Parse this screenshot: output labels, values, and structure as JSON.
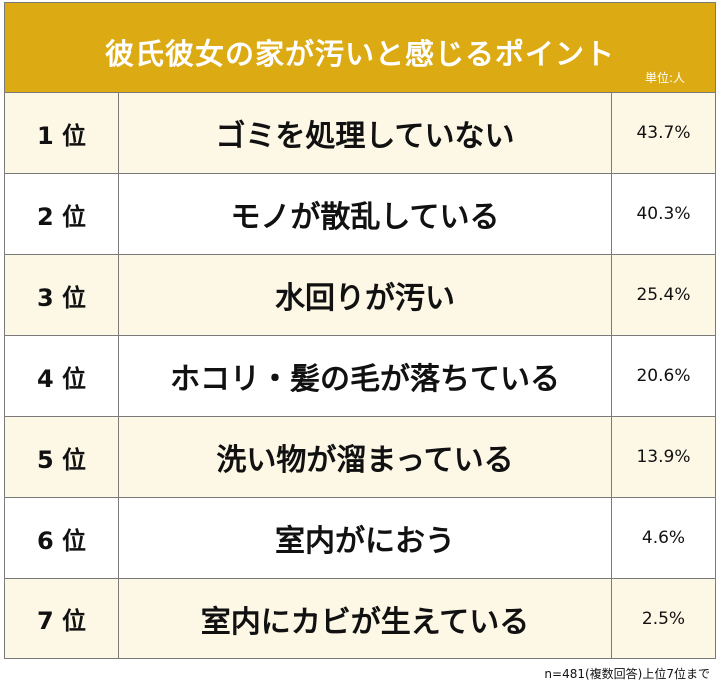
{
  "chart_data": {
    "type": "table",
    "title": "彼氏彼女の家が汚いと感じるポイント",
    "unit_label": "単位:人",
    "rows": [
      {
        "rank": "1 位",
        "item": "ゴミを処理していない",
        "value": "43.7%"
      },
      {
        "rank": "2 位",
        "item": "モノが散乱している",
        "value": "40.3%"
      },
      {
        "rank": "3 位",
        "item": "水回りが汚い",
        "value": "25.4%"
      },
      {
        "rank": "4 位",
        "item": "ホコリ・髪の毛が落ちている",
        "value": "20.6%"
      },
      {
        "rank": "5 位",
        "item": "洗い物が溜まっている",
        "value": "13.9%"
      },
      {
        "rank": "6 位",
        "item": "室内がにおう",
        "value": "4.6%"
      },
      {
        "rank": "7 位",
        "item": "室内にカビが生えている",
        "value": "2.5%"
      }
    ],
    "note": "n=481(複数回答)上位7位まで"
  },
  "colors": {
    "header_background": "#dcaa13",
    "odd_row_background": "#fdf7e6",
    "border": "#7a7a7a"
  }
}
